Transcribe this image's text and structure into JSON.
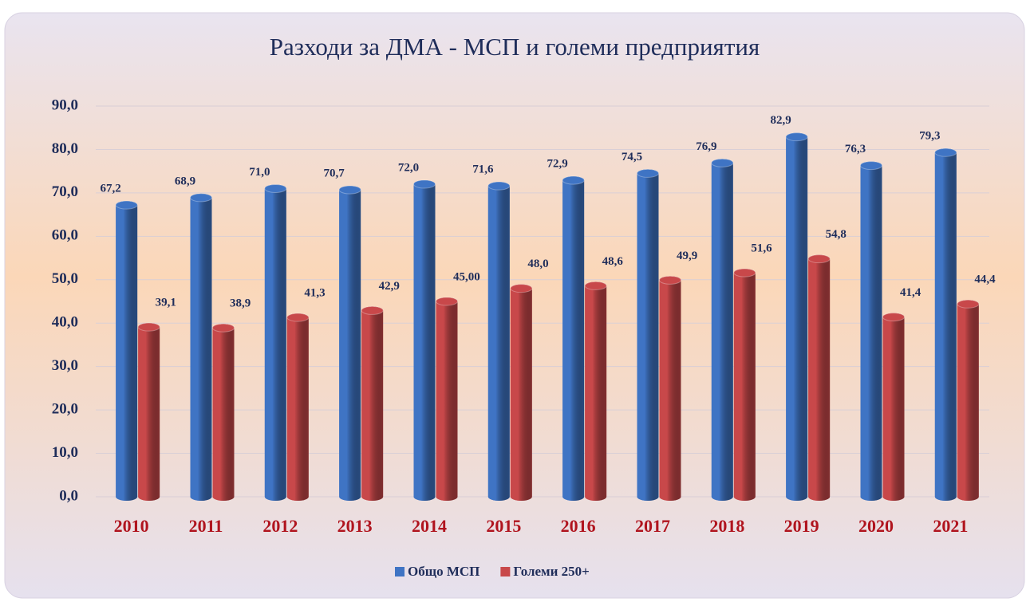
{
  "chart_data": {
    "type": "bar",
    "title": "Разходи за ДМА  - МСП  и големи предприятия",
    "categories": [
      "2010",
      "2011",
      "2012",
      "2013",
      "2014",
      "2015",
      "2016",
      "2017",
      "2018",
      "2019",
      "2020",
      "2021"
    ],
    "series": [
      {
        "name": "Общо МСП",
        "color": "#3f74c4",
        "values": [
          67.2,
          68.9,
          71.0,
          70.7,
          72.0,
          71.6,
          72.9,
          74.5,
          76.9,
          82.9,
          76.3,
          79.3
        ],
        "value_labels": [
          "67,2",
          "68,9",
          "71,0",
          "70,7",
          "72,0",
          "71,6",
          "72,9",
          "74,5",
          "76,9",
          "82,9",
          "76,3",
          "79,3"
        ]
      },
      {
        "name": "Големи 250+",
        "color": "#c8484a",
        "values": [
          39.1,
          38.9,
          41.3,
          42.9,
          45.0,
          48.0,
          48.6,
          49.9,
          51.6,
          54.8,
          41.4,
          44.4
        ],
        "value_labels": [
          "39,1",
          "38,9",
          "41,3",
          "42,9",
          "45,00",
          "48,0",
          "48,6",
          "49,9",
          "51,6",
          "54,8",
          "41,4",
          "44,4"
        ]
      }
    ],
    "ylim": [
      0,
      90
    ],
    "yticks": [
      {
        "value": 0,
        "label": "0,0"
      },
      {
        "value": 10,
        "label": "10,0"
      },
      {
        "value": 20,
        "label": "20,0"
      },
      {
        "value": 30,
        "label": "30,0"
      },
      {
        "value": 40,
        "label": "40,0"
      },
      {
        "value": 50,
        "label": "50,0"
      },
      {
        "value": 60,
        "label": "60,0"
      },
      {
        "value": 70,
        "label": "70,0"
      },
      {
        "value": 80,
        "label": "80,0"
      },
      {
        "value": 90,
        "label": "90,0"
      }
    ],
    "grid": true,
    "legend": "bottom"
  }
}
